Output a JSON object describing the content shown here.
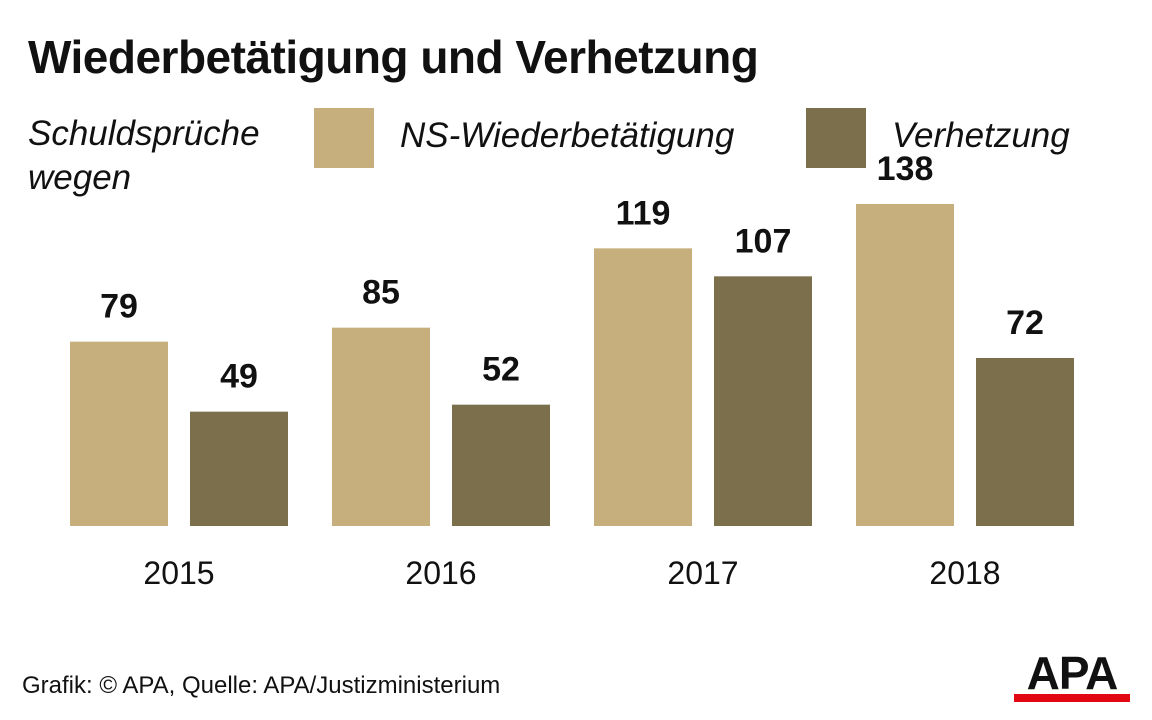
{
  "chart_data": {
    "type": "bar",
    "title": "Wiederbetätigung und Verhetzung",
    "subtitle": "Schuldsprüche wegen",
    "categories": [
      "2015",
      "2016",
      "2017",
      "2018"
    ],
    "series": [
      {
        "name": "NS-Wiederbetätigung",
        "values": [
          79,
          85,
          119,
          138
        ],
        "color": "#C6AF7C"
      },
      {
        "name": "Verhetzung",
        "values": [
          49,
          52,
          107,
          72
        ],
        "color": "#7B6F4C"
      }
    ],
    "ylim": [
      0,
      150
    ],
    "grid": false,
    "legend_position": "top"
  },
  "source": "Grafik: © APA, Quelle: APA/Justizministerium",
  "logo": {
    "text": "APA",
    "accent_color": "#E30613"
  }
}
